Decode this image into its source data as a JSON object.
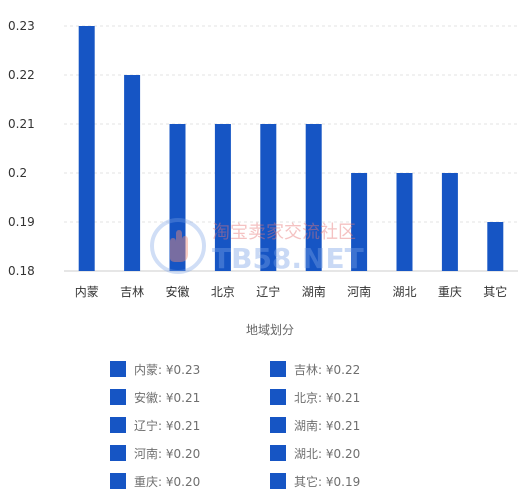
{
  "chart_data": {
    "type": "bar",
    "categories": [
      "内蒙",
      "吉林",
      "安徽",
      "北京",
      "辽宁",
      "湖南",
      "河南",
      "湖北",
      "重庆",
      "其它"
    ],
    "values": [
      0.23,
      0.22,
      0.21,
      0.21,
      0.21,
      0.21,
      0.2,
      0.2,
      0.2,
      0.19
    ],
    "ylim": [
      0.18,
      0.23
    ],
    "yticks": [
      "0.18",
      "0.19",
      "0.2",
      "0.21",
      "0.22",
      "0.23"
    ],
    "xlabel": "地域划分",
    "ylabel": "",
    "title": "",
    "grid": true,
    "legend_position": "bottom",
    "colors": {
      "bar": "#1655c4",
      "grid": "#e3e3e3",
      "axis": "#cccccc",
      "text": "#333333"
    }
  },
  "legend": [
    {
      "label": "内蒙: ¥0.23"
    },
    {
      "label": "吉林: ¥0.22"
    },
    {
      "label": "安徽: ¥0.21"
    },
    {
      "label": "北京: ¥0.21"
    },
    {
      "label": "辽宁: ¥0.21"
    },
    {
      "label": "湖南: ¥0.21"
    },
    {
      "label": "河南: ¥0.20"
    },
    {
      "label": "湖北: ¥0.20"
    },
    {
      "label": "重庆: ¥0.20"
    },
    {
      "label": "其它: ¥0.19"
    }
  ],
  "watermark": {
    "line1": "淘宝卖家交流社区",
    "line2": "TB58.NET",
    "logo_icon": "hand-logo-icon"
  }
}
